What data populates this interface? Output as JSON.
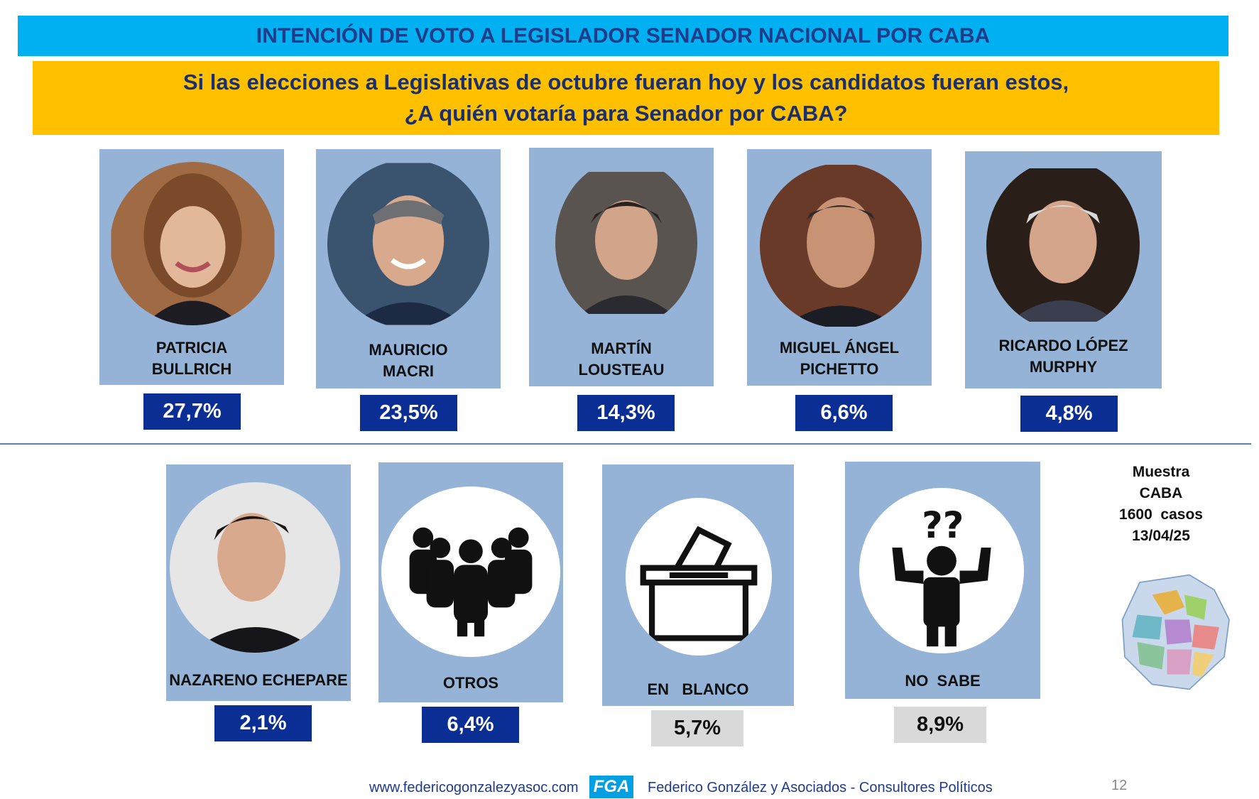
{
  "header": {
    "title": "INTENCIÓN DE VOTO A LEGISLADOR SENADOR NACIONAL POR CABA",
    "question_line1": "Si las elecciones a Legislativas de octubre fueran hoy y los candidatos fueran estos,",
    "question_line2": "¿A quién votaría para Senador por CABA?"
  },
  "candidates": [
    {
      "line1": "PATRICIA",
      "line2": "BULLRICH",
      "pct": "27,7%",
      "value": 27.7
    },
    {
      "line1": "MAURICIO",
      "line2": "MACRI",
      "pct": "23,5%",
      "value": 23.5
    },
    {
      "line1": "MARTÍN",
      "line2": "LOUSTEAU",
      "pct": "14,3%",
      "value": 14.3
    },
    {
      "line1": "MIGUEL ÁNGEL",
      "line2": "PICHETTO",
      "pct": "6,6%",
      "value": 6.6
    },
    {
      "line1": "RICARDO LÓPEZ",
      "line2": "MURPHY",
      "pct": "4,8%",
      "value": 4.8
    }
  ],
  "others": [
    {
      "name": "NAZARENO ECHEPARE",
      "pct": "2,1%",
      "value": 2.1,
      "icon": "person-photo"
    },
    {
      "name": "OTROS",
      "pct": "6,4%",
      "value": 6.4,
      "icon": "group-icon"
    },
    {
      "name": "EN   BLANCO",
      "pct": "5,7%",
      "value": 5.7,
      "icon": "ballot-box-icon"
    },
    {
      "name": "NO  SABE",
      "pct": "8,9%",
      "value": 8.9,
      "icon": "confused-person-icon"
    }
  ],
  "sample": {
    "line1": "Muestra",
    "line2": "CABA",
    "line3": "1600  casos",
    "line4": "13/04/25"
  },
  "footer": {
    "url": "www.federicogonzalezyasoc.com",
    "logo": "FGA",
    "company": "Federico González y Asociados - Consultores Políticos",
    "page": "12"
  },
  "colors": {
    "title_bar": "#00b0f0",
    "question_box": "#ffc000",
    "card": "#95b3d7",
    "pct_blue": "#0b2e94",
    "pct_grey": "#d9d9d9"
  }
}
